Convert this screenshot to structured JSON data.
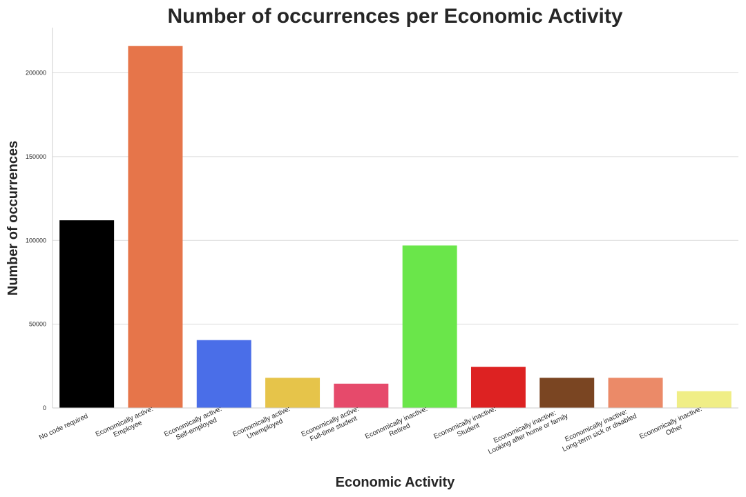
{
  "chart_data": {
    "type": "bar",
    "title": "Number of occurrences per Economic Activity",
    "xlabel": "Economic Activity",
    "ylabel": "Number of occurrences",
    "ylim": [
      0,
      227000
    ],
    "yticks": [
      0,
      50000,
      100000,
      150000,
      200000
    ],
    "ytick_labels": [
      "0",
      "50000",
      "100000",
      "150000",
      "200000"
    ],
    "grid": "horizontal",
    "categories": [
      [
        "No code required"
      ],
      [
        "Economically active:",
        "Employee"
      ],
      [
        "Economically active:",
        "Self-employed"
      ],
      [
        "Economically active:",
        "Unemployed"
      ],
      [
        "Economically active:",
        "Full-time student"
      ],
      [
        "Economically inactive:",
        "Retired"
      ],
      [
        "Economically inactive:",
        "Student"
      ],
      [
        "Economically inactive:",
        "Looking after home or family"
      ],
      [
        "Economically inactive:",
        "Long-term sick or disabled"
      ],
      [
        "Economically inactive:",
        "Other"
      ]
    ],
    "values": [
      112000,
      216000,
      40500,
      18000,
      14500,
      97000,
      24500,
      18000,
      18000,
      10000
    ],
    "colors": [
      "#000000",
      "#e6754a",
      "#4a6ee8",
      "#e6c44a",
      "#e64a6b",
      "#6ae64a",
      "#dd2222",
      "#7a4522",
      "#eb8a68",
      "#f0ee86"
    ]
  }
}
